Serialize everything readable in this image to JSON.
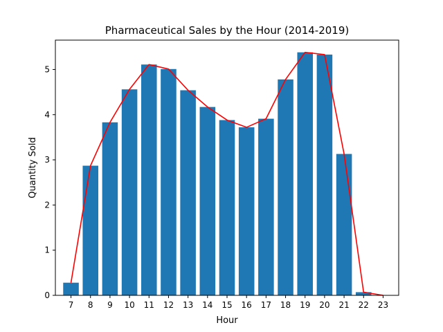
{
  "chart_data": {
    "type": "bar",
    "title": "Pharmaceutical Sales by the Hour (2014-2019)",
    "xlabel": "Hour",
    "ylabel": "Quantity Sold",
    "categories": [
      "7",
      "8",
      "9",
      "10",
      "11",
      "12",
      "13",
      "14",
      "15",
      "16",
      "17",
      "18",
      "19",
      "20",
      "21",
      "22",
      "23"
    ],
    "series": [
      {
        "type": "bar",
        "values": [
          0.28,
          2.87,
          3.83,
          4.56,
          5.11,
          5.01,
          4.54,
          4.17,
          3.88,
          3.72,
          3.91,
          4.78,
          5.38,
          5.33,
          3.13,
          0.07,
          0.0
        ]
      },
      {
        "type": "line",
        "values": [
          0.28,
          2.87,
          3.83,
          4.56,
          5.11,
          5.01,
          4.54,
          4.17,
          3.88,
          3.72,
          3.91,
          4.78,
          5.38,
          5.33,
          3.13,
          0.07,
          0.0
        ]
      }
    ],
    "xlim": [
      6.2,
      23.8
    ],
    "ylim": [
      0,
      5.65
    ],
    "yticks": [
      0,
      1,
      2,
      3,
      4,
      5
    ],
    "bar_color": "#1f77b4",
    "line_color": "#ff0000",
    "grid": false
  }
}
